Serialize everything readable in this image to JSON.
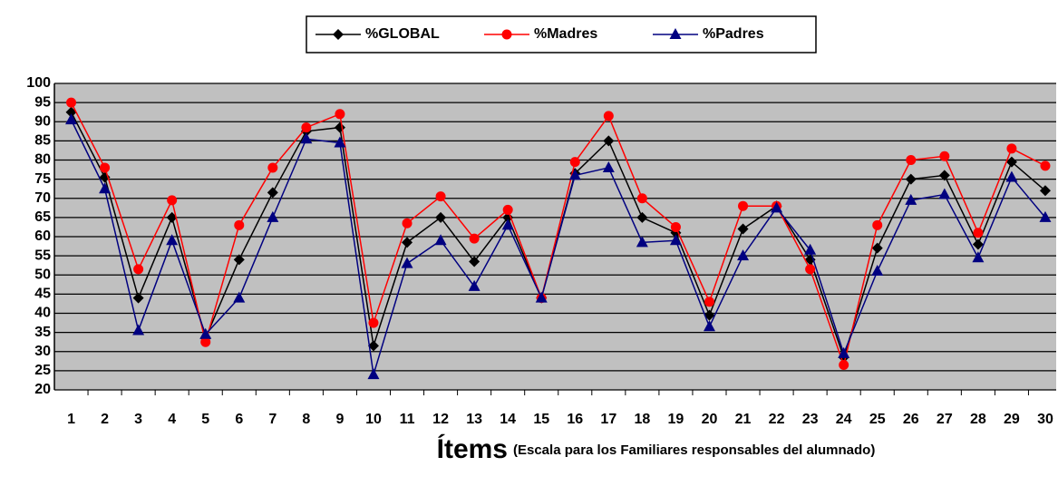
{
  "chart_data": {
    "type": "line",
    "x_label": "Ítems",
    "x_label_note": "(Escala para los Familiares responsables del alumnado)",
    "categories": [
      "1",
      "2",
      "3",
      "4",
      "5",
      "6",
      "7",
      "8",
      "9",
      "10",
      "11",
      "12",
      "13",
      "14",
      "15",
      "16",
      "17",
      "18",
      "19",
      "20",
      "21",
      "22",
      "23",
      "24",
      "25",
      "26",
      "27",
      "28",
      "29",
      "30"
    ],
    "series": [
      {
        "name": "%GLOBAL",
        "color": "#000000",
        "marker": "diamond",
        "values": [
          92.5,
          75.5,
          44,
          65,
          33.5,
          54,
          71.5,
          87.5,
          88.5,
          31.5,
          58.5,
          65,
          53.5,
          65,
          44,
          76.5,
          85,
          65,
          61,
          39.5,
          62,
          68,
          54,
          28.5,
          57,
          75,
          76,
          58,
          79.5,
          72
        ]
      },
      {
        "name": "%Madres",
        "color": "#ff0000",
        "marker": "circle",
        "values": [
          95,
          78,
          51.5,
          69.5,
          32.5,
          63,
          78,
          88.5,
          92,
          37.5,
          63.5,
          70.5,
          59.5,
          67,
          44,
          79.5,
          91.5,
          70,
          62.5,
          43,
          68,
          68,
          51.5,
          26.5,
          63,
          80,
          81,
          61,
          83,
          78.5
        ]
      },
      {
        "name": "%Padres",
        "color": "#000080",
        "marker": "triangle",
        "values": [
          90.5,
          72.5,
          35.5,
          59,
          34.5,
          44,
          65,
          85.5,
          84.5,
          24,
          53,
          59,
          47,
          63,
          44,
          76,
          78,
          58.5,
          59,
          36.5,
          55,
          67.5,
          56.5,
          29.5,
          51,
          69.5,
          71,
          54.5,
          75.5,
          65
        ]
      }
    ],
    "ylim": [
      20,
      100
    ],
    "yticks": [
      20,
      25,
      30,
      35,
      40,
      45,
      50,
      55,
      60,
      65,
      70,
      75,
      80,
      85,
      90,
      95,
      100
    ],
    "grid": true,
    "legend": "top"
  }
}
